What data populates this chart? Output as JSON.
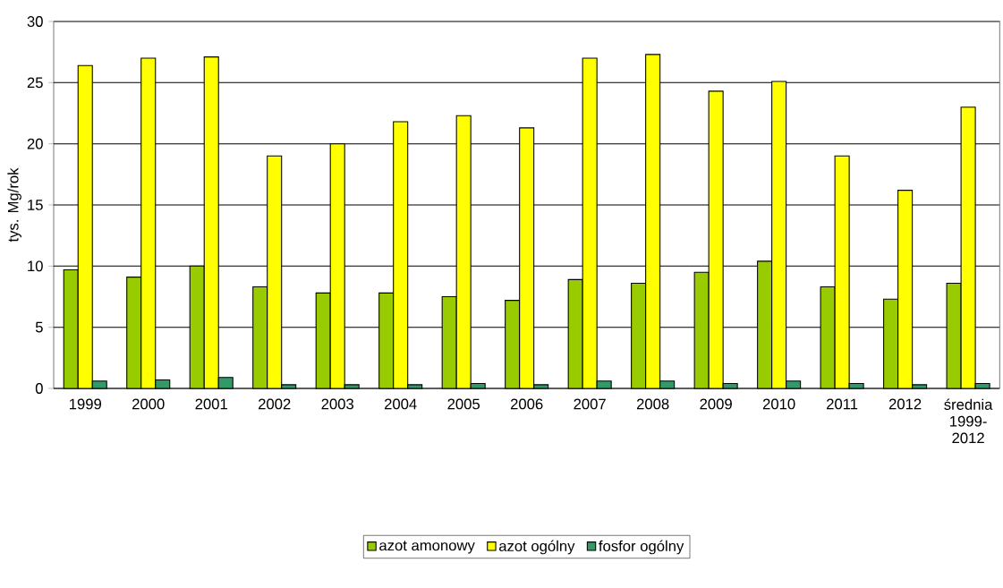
{
  "chart_data": {
    "type": "bar",
    "ylabel": "tys. Mg/rok",
    "categories": [
      "1999",
      "2000",
      "2001",
      "2002",
      "2003",
      "2004",
      "2005",
      "2006",
      "2007",
      "2008",
      "2009",
      "2010",
      "2011",
      "2012",
      "średnia 1999-2012"
    ],
    "series": [
      {
        "name": "azot amonowy",
        "color": "#99cc00",
        "values": [
          9.7,
          9.1,
          10.0,
          8.3,
          7.8,
          7.8,
          7.5,
          7.2,
          8.9,
          8.6,
          9.5,
          10.4,
          8.3,
          7.3,
          8.6
        ]
      },
      {
        "name": "azot ogólny",
        "color": "#ffff00",
        "values": [
          26.4,
          27.0,
          27.1,
          19.0,
          20.0,
          21.8,
          22.3,
          21.3,
          27.0,
          27.3,
          24.3,
          25.1,
          19.0,
          16.2,
          23.0
        ]
      },
      {
        "name": "fosfor ogólny",
        "color": "#339966",
        "values": [
          0.6,
          0.7,
          0.9,
          0.3,
          0.3,
          0.3,
          0.4,
          0.3,
          0.6,
          0.6,
          0.4,
          0.6,
          0.4,
          0.3,
          0.4
        ]
      }
    ],
    "ylim": [
      0,
      30
    ],
    "yticks": [
      0,
      5,
      10,
      15,
      20,
      25,
      30
    ],
    "grid": "y",
    "legend": "bottom"
  }
}
